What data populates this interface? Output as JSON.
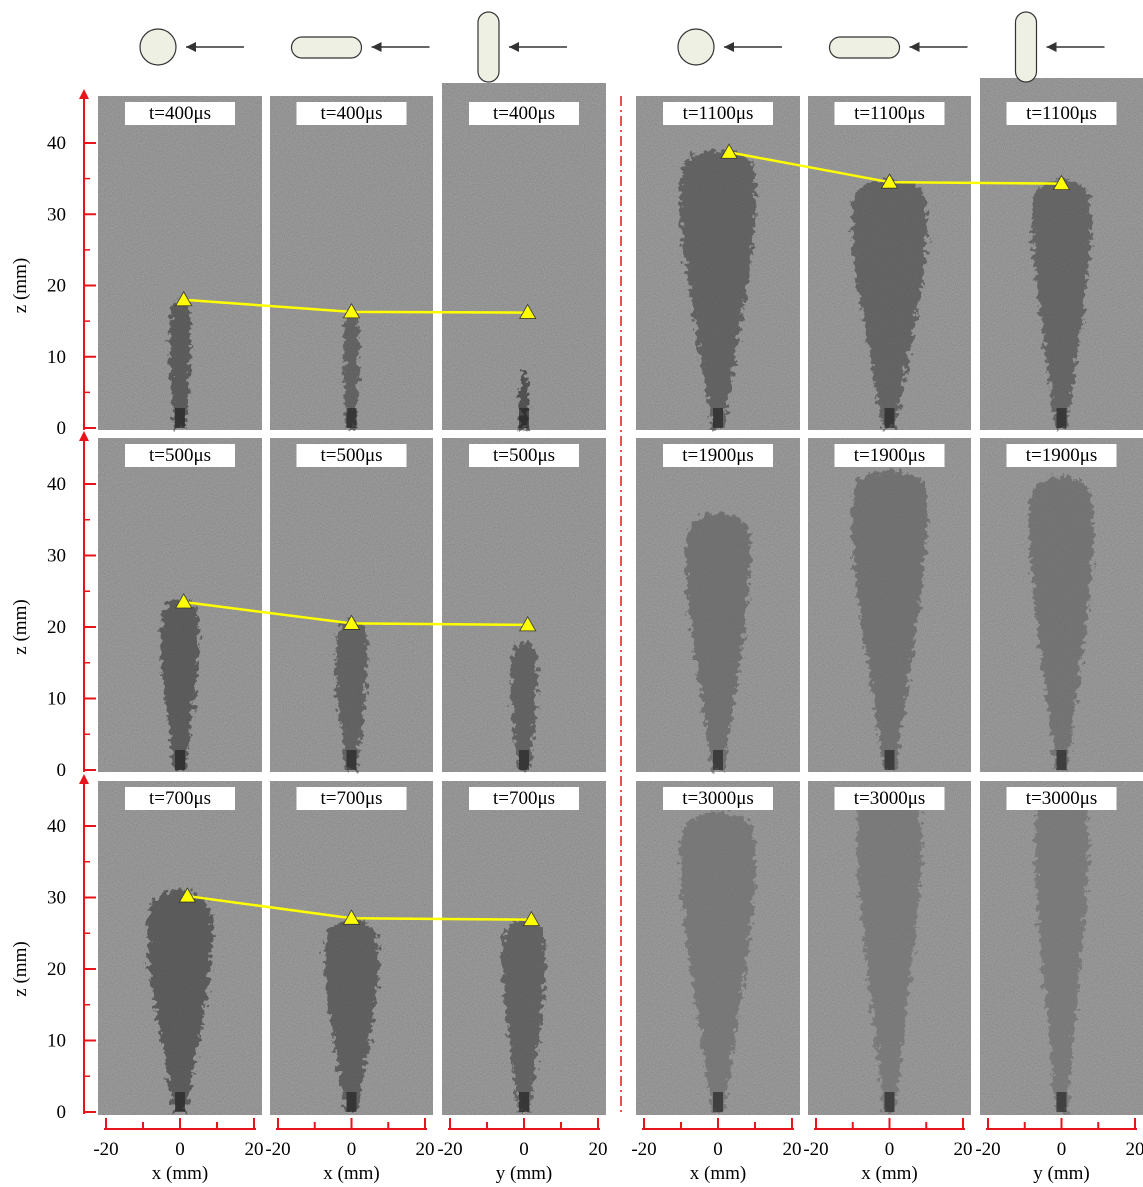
{
  "figure": {
    "axes": {
      "z_label": "z (mm)",
      "z_ticks": [
        "0",
        "10",
        "20",
        "30",
        "40"
      ],
      "bottom_ticks": [
        "-20",
        "0",
        "20"
      ],
      "column_labels": [
        "x (mm)",
        "x (mm)",
        "y (mm)",
        "x (mm)",
        "x (mm)",
        "y (mm)"
      ]
    },
    "column_icons": [
      "circle-nozzle-icon",
      "horizontal-slot-nozzle-icon",
      "vertical-slot-nozzle-icon",
      "circle-nozzle-icon",
      "horizontal-slot-nozzle-icon",
      "vertical-slot-nozzle-icon"
    ],
    "flow_arrow_icon": "left-arrow-icon",
    "time_labels": {
      "left": [
        "t=400μs",
        "t=500μs",
        "t=700μs"
      ],
      "right": [
        "t=1100μs",
        "t=1900μs",
        "t=3000μs"
      ]
    },
    "tip_markers": [
      {
        "time": "t=400μs",
        "group": "left",
        "row": 0,
        "z_mm": [
          18,
          16.3,
          16.2
        ],
        "x_mm": [
          1,
          0,
          1
        ]
      },
      {
        "time": "t=500μs",
        "group": "left",
        "row": 1,
        "z_mm": [
          23.5,
          20.5,
          20.3
        ],
        "x_mm": [
          1,
          0,
          1
        ]
      },
      {
        "time": "t=700μs",
        "group": "left",
        "row": 2,
        "z_mm": [
          30.2,
          27.1,
          26.9
        ],
        "x_mm": [
          2,
          0,
          2
        ]
      },
      {
        "time": "t=1100μs",
        "group": "right",
        "row": 0,
        "z_mm": [
          38.7,
          34.5,
          34.3
        ],
        "x_mm": [
          3,
          0,
          0
        ]
      }
    ],
    "colors": {
      "axis": "#e8141c",
      "marker": "#ffff00",
      "panel_background": "#7f7f7f",
      "icon_fill": "#eef0e4"
    }
  }
}
